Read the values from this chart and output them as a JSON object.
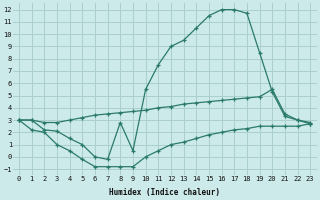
{
  "xlabel": "Humidex (Indice chaleur)",
  "bg_color": "#cdeaea",
  "grid_color": "#aacfcf",
  "line_color": "#2a7a6a",
  "xlim": [
    -0.5,
    23.5
  ],
  "ylim": [
    -1.5,
    12.5
  ],
  "xticks": [
    0,
    1,
    2,
    3,
    4,
    5,
    6,
    7,
    8,
    9,
    10,
    11,
    12,
    13,
    14,
    15,
    16,
    17,
    18,
    19,
    20,
    21,
    22,
    23
  ],
  "yticks": [
    -1,
    0,
    1,
    2,
    3,
    4,
    5,
    6,
    7,
    8,
    9,
    10,
    11,
    12
  ],
  "curve1_x": [
    0,
    1,
    2,
    3,
    4,
    5,
    6,
    7,
    8,
    9,
    10,
    11,
    12,
    13,
    14,
    15,
    16,
    17,
    18,
    19,
    20,
    21,
    22,
    23
  ],
  "curve1_y": [
    3.0,
    3.0,
    2.2,
    2.1,
    1.5,
    1.0,
    0.0,
    -0.2,
    2.8,
    0.5,
    5.5,
    7.5,
    9.0,
    9.5,
    10.5,
    11.5,
    12.0,
    12.0,
    11.7,
    8.5,
    5.3,
    3.3,
    3.0,
    2.7
  ],
  "curve2_x": [
    0,
    1,
    2,
    3,
    4,
    5,
    6,
    7,
    8,
    9,
    10,
    11,
    12,
    13,
    14,
    15,
    16,
    17,
    18,
    19,
    20,
    21,
    22,
    23
  ],
  "curve2_y": [
    3.0,
    3.0,
    2.8,
    2.8,
    3.0,
    3.2,
    3.4,
    3.5,
    3.6,
    3.7,
    3.8,
    4.0,
    4.1,
    4.3,
    4.4,
    4.5,
    4.6,
    4.7,
    4.8,
    4.9,
    5.5,
    3.5,
    3.0,
    2.8
  ],
  "curve3_x": [
    0,
    1,
    2,
    3,
    4,
    5,
    6,
    7,
    8,
    9,
    10,
    11,
    12,
    13,
    14,
    15,
    16,
    17,
    18,
    19,
    20,
    21,
    22,
    23
  ],
  "curve3_y": [
    3.0,
    2.2,
    2.0,
    1.0,
    0.5,
    -0.2,
    -0.8,
    -0.8,
    -0.8,
    -0.8,
    0.0,
    0.5,
    1.0,
    1.2,
    1.5,
    1.8,
    2.0,
    2.2,
    2.3,
    2.5,
    2.5,
    2.5,
    2.5,
    2.7
  ]
}
